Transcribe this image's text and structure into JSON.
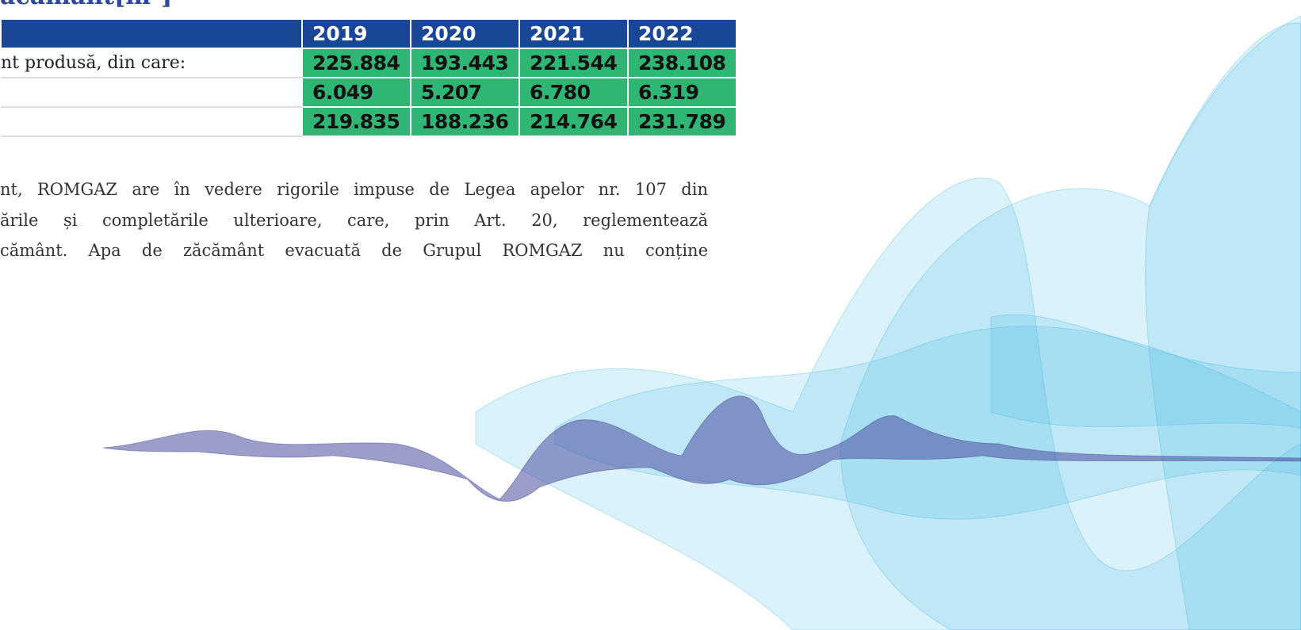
{
  "header": {
    "title": "ăcământ[m³]"
  },
  "table": {
    "columns": [
      "2019",
      "2020",
      "2021",
      "2022"
    ],
    "rows": [
      {
        "label": "nt produsă, din care:",
        "values": [
          "225.884",
          "193.443",
          "221.544",
          "238.108"
        ]
      },
      {
        "values": [
          "6.049",
          "5.207",
          "6.780",
          "6.319"
        ]
      },
      {
        "values": [
          "219.835",
          "188.236",
          "214.764",
          "231.789"
        ]
      }
    ]
  },
  "paragraph": {
    "lines": [
      "nt, ROMGAZ are în vedere rigorile impuse de Legea apelor nr. 107 din",
      "ările și completările ulterioare, care, prin Art. 20, reglementează",
      "cământ. Apa de zăcământ evacuată de Grupul ROMGAZ nu conține"
    ]
  }
}
